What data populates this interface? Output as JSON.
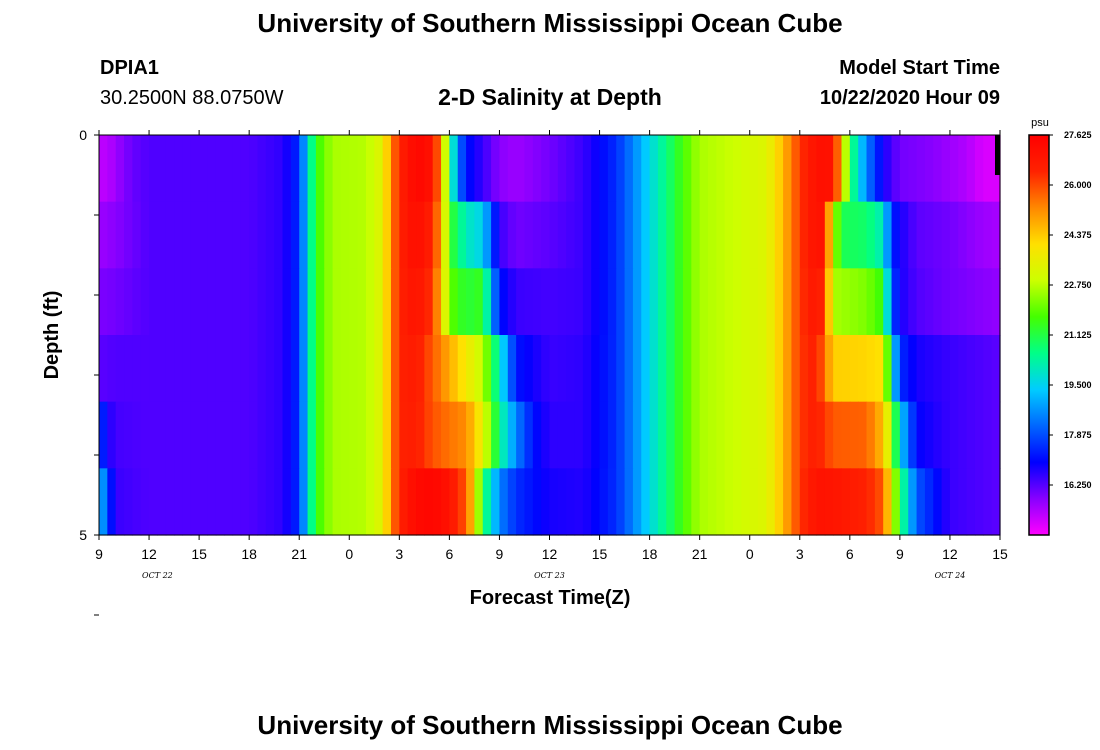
{
  "header": {
    "title": "University of Southern Mississippi Ocean Cube",
    "station_id": "DPIA1",
    "coordinates": "30.2500N 88.0750W",
    "chart_title": "2-D Salinity at Depth",
    "model_start_label": "Model Start Time",
    "model_start_value": "10/22/2020 Hour 09"
  },
  "footer": {
    "title": "University of Southern Mississippi Ocean Cube"
  },
  "chart_data": {
    "type": "heatmap",
    "title": "2-D Salinity at Depth",
    "xlabel": "Forecast Time(Z)",
    "ylabel": "Depth (ft)",
    "ylim": [
      0,
      5
    ],
    "y_tick_labels": [
      "0",
      "5"
    ],
    "x_tick_labels": [
      "9",
      "12",
      "15",
      "18",
      "21",
      "0",
      "3",
      "6",
      "9",
      "12",
      "15",
      "18",
      "21",
      "0",
      "3",
      "6",
      "9",
      "12",
      "15"
    ],
    "date_labels": [
      {
        "label": "OCT 22",
        "hour": 12.5
      },
      {
        "label": "OCT 23",
        "hour": 36
      },
      {
        "label": "OCT 24",
        "hour": 60
      }
    ],
    "x_hours": [
      9,
      63
    ],
    "depth_rows": [
      0,
      1,
      2,
      3,
      4,
      5
    ],
    "time_series_by_depth": [
      {
        "depth": 0,
        "points": [
          [
            9,
            15.3
          ],
          [
            9.5,
            15.3
          ],
          [
            10,
            15.6
          ],
          [
            11,
            16.1
          ],
          [
            12,
            16.3
          ],
          [
            18,
            16.3
          ],
          [
            20,
            16.6
          ],
          [
            21,
            17.5
          ],
          [
            21.5,
            19.6
          ],
          [
            22,
            21.5
          ],
          [
            23,
            22.6
          ],
          [
            25,
            22.7
          ],
          [
            26,
            23.4
          ],
          [
            26.5,
            25.2
          ],
          [
            27,
            26.5
          ],
          [
            28,
            27.4
          ],
          [
            29,
            27
          ],
          [
            29.5,
            25
          ],
          [
            30,
            21
          ],
          [
            30.5,
            18.5
          ],
          [
            31,
            17.2
          ],
          [
            32,
            16.5
          ],
          [
            33,
            15.8
          ],
          [
            34,
            15.6
          ],
          [
            36,
            16.0
          ],
          [
            38,
            16.5
          ],
          [
            40,
            17.5
          ],
          [
            41,
            18.5
          ],
          [
            42,
            19.6
          ],
          [
            43,
            20.6
          ],
          [
            44,
            21.7
          ],
          [
            45,
            22.6
          ],
          [
            47,
            22.9
          ],
          [
            49,
            23.3
          ],
          [
            50,
            24.6
          ],
          [
            51,
            26.2
          ],
          [
            52,
            27.1
          ],
          [
            53,
            27.0
          ],
          [
            53.5,
            24.5
          ],
          [
            54,
            21
          ],
          [
            55,
            18.5
          ],
          [
            56,
            16.8
          ],
          [
            57,
            16.0
          ],
          [
            59,
            15.8
          ],
          [
            61,
            15.4
          ],
          [
            62,
            15.0
          ],
          [
            63,
            15.0
          ]
        ]
      },
      {
        "depth": 1,
        "points": [
          [
            9,
            15.6
          ],
          [
            10,
            15.8
          ],
          [
            12,
            16.3
          ],
          [
            18,
            16.3
          ],
          [
            20,
            16.6
          ],
          [
            21,
            17.5
          ],
          [
            21.5,
            19.6
          ],
          [
            22,
            21.5
          ],
          [
            23,
            22.6
          ],
          [
            25,
            22.7
          ],
          [
            26,
            23.4
          ],
          [
            26.5,
            25.2
          ],
          [
            27,
            26.5
          ],
          [
            28,
            27.2
          ],
          [
            29,
            26.5
          ],
          [
            29.5,
            24.8
          ],
          [
            30,
            21.5
          ],
          [
            31,
            20.0
          ],
          [
            32,
            19.5
          ],
          [
            32.5,
            18.0
          ],
          [
            33,
            16.5
          ],
          [
            34,
            16.0
          ],
          [
            36,
            16.2
          ],
          [
            38,
            16.5
          ],
          [
            40,
            17.5
          ],
          [
            41,
            18.5
          ],
          [
            42,
            19.6
          ],
          [
            43,
            20.6
          ],
          [
            44,
            21.7
          ],
          [
            45,
            22.6
          ],
          [
            47,
            22.9
          ],
          [
            49,
            23.3
          ],
          [
            50,
            24.6
          ],
          [
            51,
            26.2
          ],
          [
            52,
            27.1
          ],
          [
            52.5,
            26.8
          ],
          [
            53,
            23
          ],
          [
            53.5,
            21
          ],
          [
            55,
            20.8
          ],
          [
            56,
            20.0
          ],
          [
            56.5,
            17.5
          ],
          [
            57,
            16.8
          ],
          [
            58,
            16.2
          ],
          [
            60,
            16.0
          ],
          [
            62,
            15.6
          ],
          [
            63,
            15.5
          ]
        ]
      },
      {
        "depth": 2,
        "points": [
          [
            9,
            15.9
          ],
          [
            10,
            16.0
          ],
          [
            12,
            16.3
          ],
          [
            18,
            16.3
          ],
          [
            20,
            16.6
          ],
          [
            21,
            17.5
          ],
          [
            21.5,
            19.6
          ],
          [
            22,
            21.5
          ],
          [
            23,
            22.6
          ],
          [
            25,
            22.7
          ],
          [
            26,
            23.4
          ],
          [
            26.5,
            25.2
          ],
          [
            27,
            26.5
          ],
          [
            28,
            27.0
          ],
          [
            29,
            26.2
          ],
          [
            29.5,
            24.5
          ],
          [
            30,
            22.0
          ],
          [
            31,
            21.2
          ],
          [
            32,
            21.5
          ],
          [
            32.5,
            19.0
          ],
          [
            33,
            17.2
          ],
          [
            34,
            16.5
          ],
          [
            36,
            16.4
          ],
          [
            38,
            16.5
          ],
          [
            40,
            17.5
          ],
          [
            41,
            18.5
          ],
          [
            42,
            19.6
          ],
          [
            43,
            20.6
          ],
          [
            44,
            21.7
          ],
          [
            45,
            22.6
          ],
          [
            47,
            22.9
          ],
          [
            49,
            23.3
          ],
          [
            50,
            24.6
          ],
          [
            51,
            26.2
          ],
          [
            52,
            26.9
          ],
          [
            52.5,
            26.2
          ],
          [
            53,
            22.6
          ],
          [
            54,
            22.4
          ],
          [
            55,
            22.2
          ],
          [
            56,
            21.5
          ],
          [
            56.5,
            18.0
          ],
          [
            57,
            16.8
          ],
          [
            58,
            16.3
          ],
          [
            60,
            16.0
          ],
          [
            62,
            15.8
          ],
          [
            63,
            15.7
          ]
        ]
      },
      {
        "depth": 3,
        "points": [
          [
            9,
            16.2
          ],
          [
            10,
            16.3
          ],
          [
            12,
            16.3
          ],
          [
            18,
            16.3
          ],
          [
            20,
            16.6
          ],
          [
            21,
            17.5
          ],
          [
            21.5,
            19.6
          ],
          [
            22,
            21.5
          ],
          [
            23,
            22.6
          ],
          [
            25,
            22.7
          ],
          [
            26,
            23.4
          ],
          [
            26.5,
            25.2
          ],
          [
            27,
            26.5
          ],
          [
            28,
            26.7
          ],
          [
            29,
            25.8
          ],
          [
            30,
            24.8
          ],
          [
            31,
            23.8
          ],
          [
            32,
            22.8
          ],
          [
            33,
            20.0
          ],
          [
            34,
            17.2
          ],
          [
            36,
            16.5
          ],
          [
            38,
            16.6
          ],
          [
            40,
            17.5
          ],
          [
            41,
            18.5
          ],
          [
            42,
            19.6
          ],
          [
            43,
            20.6
          ],
          [
            44,
            21.7
          ],
          [
            45,
            22.6
          ],
          [
            47,
            22.9
          ],
          [
            49,
            23.3
          ],
          [
            50,
            24.6
          ],
          [
            51,
            26.2
          ],
          [
            52,
            26.6
          ],
          [
            52.5,
            25.5
          ],
          [
            53,
            24.3
          ],
          [
            55,
            24.2
          ],
          [
            56,
            24.0
          ],
          [
            56.5,
            20.0
          ],
          [
            57,
            17.5
          ],
          [
            58,
            16.8
          ],
          [
            60,
            16.5
          ],
          [
            62,
            16.3
          ],
          [
            63,
            16.2
          ]
        ]
      },
      {
        "depth": 4,
        "points": [
          [
            9,
            17.8
          ],
          [
            9.5,
            16.8
          ],
          [
            10,
            16.4
          ],
          [
            12,
            16.3
          ],
          [
            18,
            16.3
          ],
          [
            20,
            16.6
          ],
          [
            21,
            17.5
          ],
          [
            21.5,
            19.6
          ],
          [
            22,
            21.5
          ],
          [
            23,
            22.6
          ],
          [
            25,
            22.7
          ],
          [
            26,
            23.4
          ],
          [
            26.5,
            25.2
          ],
          [
            27,
            26.5
          ],
          [
            28,
            26.6
          ],
          [
            29,
            25.9
          ],
          [
            30,
            25.5
          ],
          [
            31,
            25.2
          ],
          [
            32,
            23.5
          ],
          [
            33,
            20.5
          ],
          [
            34,
            18.5
          ],
          [
            35,
            17.2
          ],
          [
            36,
            16.6
          ],
          [
            38,
            16.6
          ],
          [
            40,
            17.5
          ],
          [
            41,
            18.5
          ],
          [
            42,
            19.6
          ],
          [
            43,
            20.6
          ],
          [
            44,
            21.7
          ],
          [
            45,
            22.6
          ],
          [
            47,
            22.9
          ],
          [
            49,
            23.3
          ],
          [
            50,
            24.6
          ],
          [
            51,
            26.2
          ],
          [
            52,
            26.6
          ],
          [
            53,
            25.8
          ],
          [
            55,
            25.7
          ],
          [
            56,
            24.5
          ],
          [
            56.5,
            22.5
          ],
          [
            57,
            19.5
          ],
          [
            58,
            17.0
          ],
          [
            60,
            16.5
          ],
          [
            62,
            16.3
          ],
          [
            63,
            16.2
          ]
        ]
      },
      {
        "depth": 5,
        "points": [
          [
            9,
            19.5
          ],
          [
            9.5,
            17.8
          ],
          [
            10,
            16.5
          ],
          [
            12,
            16.3
          ],
          [
            18,
            16.3
          ],
          [
            20,
            16.6
          ],
          [
            21,
            17.5
          ],
          [
            21.5,
            19.6
          ],
          [
            22,
            21.5
          ],
          [
            23,
            22.6
          ],
          [
            25,
            22.7
          ],
          [
            26,
            23.4
          ],
          [
            26.5,
            25.2
          ],
          [
            27,
            26.5
          ],
          [
            28,
            27.3
          ],
          [
            29,
            27.4
          ],
          [
            30,
            27.0
          ],
          [
            31,
            25.8
          ],
          [
            31.5,
            24.0
          ],
          [
            32,
            21.0
          ],
          [
            33,
            18.5
          ],
          [
            34,
            17.5
          ],
          [
            36,
            16.8
          ],
          [
            38,
            16.7
          ],
          [
            40,
            17.5
          ],
          [
            41,
            18.5
          ],
          [
            42,
            19.6
          ],
          [
            43,
            20.6
          ],
          [
            44,
            21.7
          ],
          [
            45,
            22.6
          ],
          [
            47,
            22.9
          ],
          [
            49,
            23.3
          ],
          [
            50,
            24.6
          ],
          [
            51,
            26.2
          ],
          [
            52,
            27.0
          ],
          [
            53,
            26.9
          ],
          [
            55,
            26.5
          ],
          [
            56,
            25.8
          ],
          [
            56.5,
            23.5
          ],
          [
            57,
            21.0
          ],
          [
            58,
            18.0
          ],
          [
            60,
            16.5
          ],
          [
            62,
            16.3
          ],
          [
            63,
            16.2
          ]
        ]
      }
    ],
    "colorbar": {
      "unit": "psu",
      "min": 14.625,
      "max": 27.625,
      "tick_labels": [
        "27.625",
        "26.000",
        "24.375",
        "22.750",
        "21.125",
        "19.500",
        "17.875",
        "16.250"
      ],
      "tick_values": [
        27.625,
        26.0,
        24.375,
        22.75,
        21.125,
        19.5,
        17.875,
        16.25
      ],
      "colors": [
        "#ff00ff",
        "#8800ff",
        "#0000ff",
        "#0066ff",
        "#00ccff",
        "#00ff88",
        "#44ff00",
        "#ccff00",
        "#ffe000",
        "#ff8800",
        "#ff2200",
        "#ff0000"
      ]
    }
  }
}
